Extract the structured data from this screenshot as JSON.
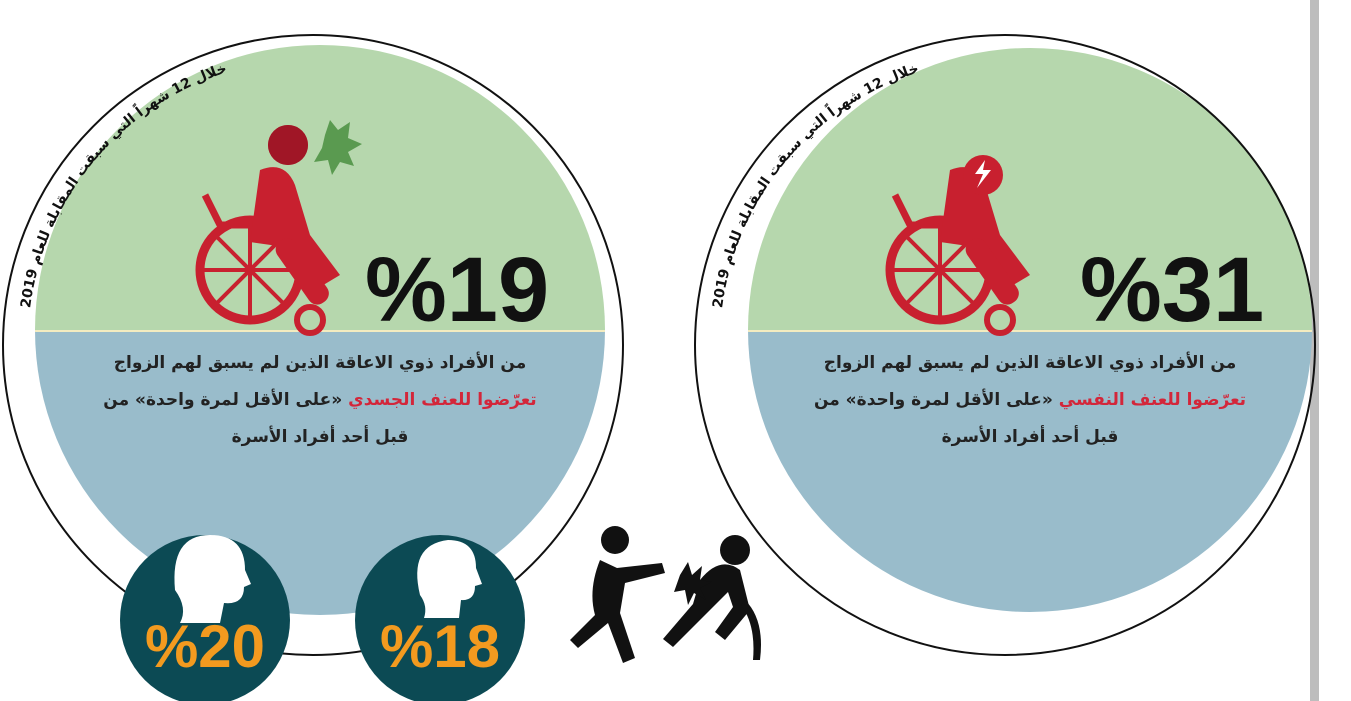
{
  "panels": [
    {
      "arc_text": "خلال 12 شهراً التي سبقت المقابلة للعام 2019",
      "percent": "%19",
      "description": {
        "line1": "من الأفراد ذوي الاعاقة الذين لم يسبق لهم الزواج",
        "highlight": "تعرّضوا للعنف الجسدي",
        "line2_rest": "«على الأقل لمرة واحدة» من",
        "line3": "قبل أحد أفراد الأسرة"
      }
    },
    {
      "arc_text": "خلال 12 شهراً التي سبقت المقابلة للعام 2019",
      "percent": "%31",
      "description": {
        "line1": "من الأفراد ذوي الاعاقة الذين لم يسبق لهم الزواج",
        "highlight": "تعرّضوا للعنف النفسي",
        "line2_rest": "«على الأقل لمرة واحدة» من",
        "line3": "قبل أحد أفراد الأسرة"
      }
    }
  ],
  "gender_breakdown": [
    {
      "percent": "%20"
    },
    {
      "percent": "%18"
    }
  ]
}
